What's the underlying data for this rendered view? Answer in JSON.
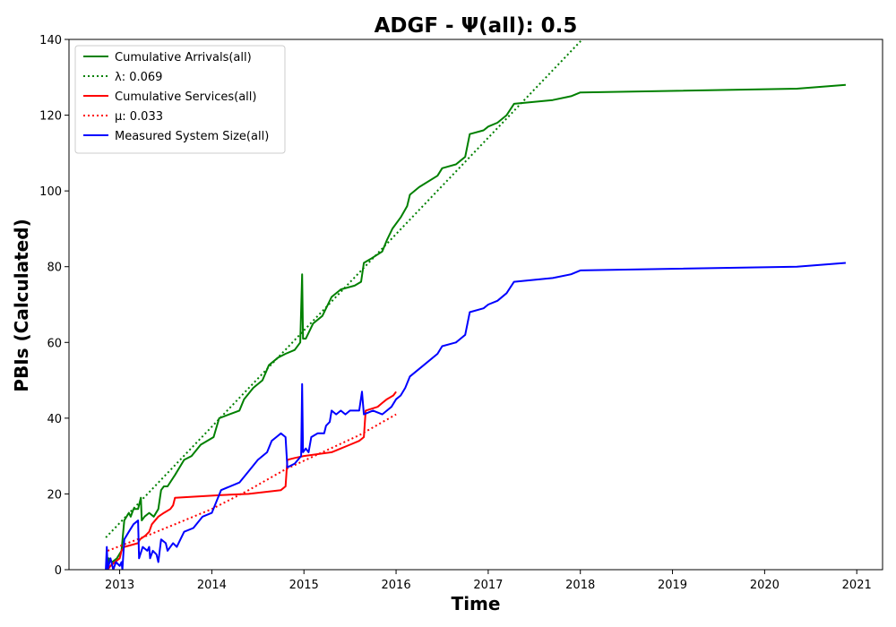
{
  "chart_data": {
    "type": "line",
    "title": "ADGF -  Ψ(all): 0.5",
    "xlabel": "Time",
    "ylabel": "PBIs (Calculated)",
    "xlim": [
      2012.45,
      2021.28
    ],
    "ylim": [
      0,
      140
    ],
    "x_ticks": [
      2013,
      2014,
      2015,
      2016,
      2017,
      2018,
      2019,
      2020,
      2021
    ],
    "x_tick_labels": [
      "2013",
      "2014",
      "2015",
      "2016",
      "2017",
      "2018",
      "2019",
      "2020",
      "2021"
    ],
    "y_ticks": [
      0,
      20,
      40,
      60,
      80,
      100,
      120,
      140
    ],
    "y_tick_labels": [
      "0",
      "20",
      "40",
      "60",
      "80",
      "100",
      "120",
      "140"
    ],
    "legend_position": "top-left",
    "grid": false,
    "series": [
      {
        "name": "Cumulative Arrivals(all)",
        "color": "#008000",
        "style": "solid",
        "points": [
          [
            2012.87,
            0
          ],
          [
            2012.88,
            3
          ],
          [
            2012.92,
            2
          ],
          [
            2012.97,
            3
          ],
          [
            2013.02,
            5
          ],
          [
            2013.05,
            13
          ],
          [
            2013.1,
            15
          ],
          [
            2013.12,
            14
          ],
          [
            2013.15,
            16
          ],
          [
            2013.2,
            16
          ],
          [
            2013.23,
            19
          ],
          [
            2013.24,
            13
          ],
          [
            2013.27,
            14
          ],
          [
            2013.32,
            15
          ],
          [
            2013.37,
            14
          ],
          [
            2013.42,
            16
          ],
          [
            2013.45,
            21
          ],
          [
            2013.48,
            22
          ],
          [
            2013.52,
            22
          ],
          [
            2013.6,
            25
          ],
          [
            2013.7,
            29
          ],
          [
            2013.78,
            30
          ],
          [
            2013.88,
            33
          ],
          [
            2014.02,
            35
          ],
          [
            2014.08,
            40
          ],
          [
            2014.3,
            42
          ],
          [
            2014.35,
            45
          ],
          [
            2014.45,
            48
          ],
          [
            2014.55,
            50
          ],
          [
            2014.62,
            54
          ],
          [
            2014.72,
            56
          ],
          [
            2014.8,
            57
          ],
          [
            2014.9,
            58
          ],
          [
            2014.96,
            60
          ],
          [
            2014.98,
            78
          ],
          [
            2014.99,
            61
          ],
          [
            2015.02,
            61
          ],
          [
            2015.06,
            63
          ],
          [
            2015.1,
            65
          ],
          [
            2015.2,
            67
          ],
          [
            2015.3,
            72
          ],
          [
            2015.4,
            74
          ],
          [
            2015.55,
            75
          ],
          [
            2015.62,
            76
          ],
          [
            2015.65,
            81
          ],
          [
            2015.72,
            82
          ],
          [
            2015.85,
            84
          ],
          [
            2015.9,
            87
          ],
          [
            2015.96,
            90
          ],
          [
            2016.05,
            93
          ],
          [
            2016.12,
            96
          ],
          [
            2016.15,
            99
          ],
          [
            2016.25,
            101
          ],
          [
            2016.45,
            104
          ],
          [
            2016.5,
            106
          ],
          [
            2016.65,
            107
          ],
          [
            2016.7,
            108
          ],
          [
            2016.75,
            109
          ],
          [
            2016.8,
            115
          ],
          [
            2016.95,
            116
          ],
          [
            2017.0,
            117
          ],
          [
            2017.1,
            118
          ],
          [
            2017.2,
            120
          ],
          [
            2017.28,
            123
          ],
          [
            2017.7,
            124
          ],
          [
            2017.9,
            125
          ],
          [
            2018.0,
            126
          ],
          [
            2020.35,
            127
          ],
          [
            2020.88,
            128
          ]
        ]
      },
      {
        "name": "λ: 0.069",
        "color": "#008000",
        "style": "dotted",
        "points": [
          [
            2012.85,
            8.5
          ],
          [
            2018.1,
            142
          ]
        ]
      },
      {
        "name": "Cumulative Services(all)",
        "color": "#ff0000",
        "style": "solid",
        "points": [
          [
            2012.87,
            0
          ],
          [
            2012.9,
            1
          ],
          [
            2012.95,
            2
          ],
          [
            2013.0,
            3
          ],
          [
            2013.02,
            5
          ],
          [
            2013.05,
            6
          ],
          [
            2013.2,
            7
          ],
          [
            2013.22,
            8
          ],
          [
            2013.28,
            9
          ],
          [
            2013.32,
            10
          ],
          [
            2013.35,
            12
          ],
          [
            2013.42,
            14
          ],
          [
            2013.48,
            15
          ],
          [
            2013.55,
            16
          ],
          [
            2013.58,
            17
          ],
          [
            2013.6,
            19
          ],
          [
            2014.1,
            19.7
          ],
          [
            2014.4,
            20
          ],
          [
            2014.75,
            21
          ],
          [
            2014.8,
            22
          ],
          [
            2014.82,
            29
          ],
          [
            2014.9,
            29.5
          ],
          [
            2015.0,
            30
          ],
          [
            2015.3,
            31
          ],
          [
            2015.4,
            32
          ],
          [
            2015.5,
            33
          ],
          [
            2015.6,
            34
          ],
          [
            2015.65,
            35
          ],
          [
            2015.67,
            42
          ],
          [
            2015.8,
            43
          ],
          [
            2015.85,
            44
          ],
          [
            2015.9,
            45
          ],
          [
            2015.97,
            46
          ],
          [
            2016.0,
            47
          ]
        ]
      },
      {
        "name": "μ: 0.033",
        "color": "#ff0000",
        "style": "dotted",
        "points": [
          [
            2012.87,
            5
          ],
          [
            2013.3,
            9
          ],
          [
            2013.6,
            12
          ],
          [
            2014.0,
            16
          ],
          [
            2014.4,
            21
          ],
          [
            2014.8,
            26.5
          ],
          [
            2015.2,
            31
          ],
          [
            2015.6,
            35.5
          ],
          [
            2016.0,
            41
          ]
        ]
      },
      {
        "name": "Measured System Size(all)",
        "color": "#0000ff",
        "style": "solid",
        "points": [
          [
            2012.85,
            0
          ],
          [
            2012.86,
            6
          ],
          [
            2012.87,
            0
          ],
          [
            2012.9,
            3
          ],
          [
            2012.93,
            0
          ],
          [
            2012.96,
            2
          ],
          [
            2013.0,
            1
          ],
          [
            2013.02,
            2
          ],
          [
            2013.03,
            0
          ],
          [
            2013.05,
            8
          ],
          [
            2013.1,
            10
          ],
          [
            2013.15,
            12
          ],
          [
            2013.2,
            13
          ],
          [
            2013.21,
            3
          ],
          [
            2013.25,
            6
          ],
          [
            2013.3,
            5
          ],
          [
            2013.32,
            6
          ],
          [
            2013.33,
            3
          ],
          [
            2013.36,
            5
          ],
          [
            2013.4,
            4
          ],
          [
            2013.42,
            2
          ],
          [
            2013.45,
            8
          ],
          [
            2013.5,
            7
          ],
          [
            2013.52,
            5
          ],
          [
            2013.55,
            6
          ],
          [
            2013.58,
            7
          ],
          [
            2013.62,
            6
          ],
          [
            2013.7,
            10
          ],
          [
            2013.8,
            11
          ],
          [
            2013.9,
            14
          ],
          [
            2014.0,
            15
          ],
          [
            2014.1,
            21
          ],
          [
            2014.3,
            23
          ],
          [
            2014.4,
            26
          ],
          [
            2014.5,
            29
          ],
          [
            2014.6,
            31
          ],
          [
            2014.65,
            34
          ],
          [
            2014.7,
            35
          ],
          [
            2014.75,
            36
          ],
          [
            2014.8,
            35
          ],
          [
            2014.82,
            27
          ],
          [
            2014.9,
            28
          ],
          [
            2014.97,
            30
          ],
          [
            2014.98,
            49
          ],
          [
            2014.99,
            31
          ],
          [
            2015.02,
            32
          ],
          [
            2015.05,
            31
          ],
          [
            2015.08,
            35
          ],
          [
            2015.15,
            36
          ],
          [
            2015.22,
            36
          ],
          [
            2015.24,
            38
          ],
          [
            2015.28,
            39
          ],
          [
            2015.3,
            42
          ],
          [
            2015.35,
            41
          ],
          [
            2015.4,
            42
          ],
          [
            2015.45,
            41
          ],
          [
            2015.5,
            42
          ],
          [
            2015.6,
            42
          ],
          [
            2015.63,
            47
          ],
          [
            2015.65,
            41
          ],
          [
            2015.75,
            42
          ],
          [
            2015.85,
            41
          ],
          [
            2015.9,
            42
          ],
          [
            2015.95,
            43
          ],
          [
            2016.0,
            45
          ],
          [
            2016.05,
            46
          ],
          [
            2016.1,
            48
          ],
          [
            2016.15,
            51
          ],
          [
            2016.3,
            54
          ],
          [
            2016.45,
            57
          ],
          [
            2016.5,
            59
          ],
          [
            2016.65,
            60
          ],
          [
            2016.7,
            61
          ],
          [
            2016.75,
            62
          ],
          [
            2016.8,
            68
          ],
          [
            2016.95,
            69
          ],
          [
            2017.0,
            70
          ],
          [
            2017.1,
            71
          ],
          [
            2017.2,
            73
          ],
          [
            2017.28,
            76
          ],
          [
            2017.7,
            77
          ],
          [
            2017.9,
            78
          ],
          [
            2018.0,
            79
          ],
          [
            2020.35,
            80
          ],
          [
            2020.88,
            81
          ]
        ]
      }
    ]
  }
}
